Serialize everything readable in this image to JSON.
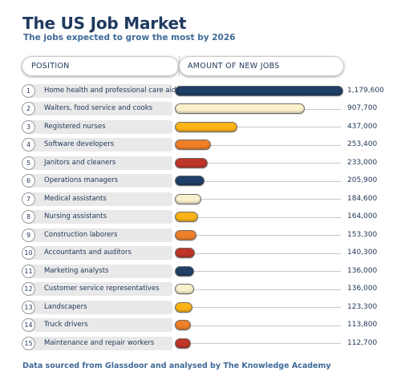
{
  "header": {
    "title": "The US Job Market",
    "subtitle": "The jobs expected to grow the most by 2026",
    "col_position": "POSITION",
    "col_amount": "AMOUNT OF NEW JOBS"
  },
  "colors": {
    "navy": "#1f3f66",
    "cream": "#fbf0cc",
    "gold": "#fbb316",
    "orange": "#ef7f28",
    "red": "#bf3628"
  },
  "chart_data": {
    "type": "bar",
    "orientation": "horizontal",
    "title": "The US Job Market",
    "subtitle": "The jobs expected to grow the most by 2026",
    "xlabel": "AMOUNT OF NEW JOBS",
    "ylabel": "POSITION",
    "categories": [
      "Home health and professional care aides",
      "Waiters, food service and cooks",
      "Registered nurses",
      "Software developers",
      "Janitors and cleaners",
      "Operations managers",
      "Medical assistants",
      "Nursing assistants",
      "Construction laborers",
      "Accountants and auditors",
      "Marketing analysts",
      "Customer service representatives",
      "Landscapers",
      "Truck drivers",
      "Maintenance and repair workers"
    ],
    "ranks": [
      "1",
      "2",
      "3",
      "4",
      "5",
      "6",
      "7",
      "8",
      "9",
      "10",
      "11",
      "12",
      "13",
      "14",
      "15"
    ],
    "values": [
      1179600,
      907700,
      437000,
      253400,
      233000,
      205900,
      184600,
      164000,
      153300,
      140300,
      136000,
      136000,
      123300,
      113800,
      112700
    ],
    "value_labels": [
      "1,179,600",
      "907,700",
      "437,000",
      "253,400",
      "233,000",
      "205,900",
      "184,600",
      "164,000",
      "153,300",
      "140,300",
      "136,000",
      "136,000",
      "123,300",
      "113,800",
      "112,700"
    ],
    "bar_colors": [
      "navy",
      "cream",
      "gold",
      "orange",
      "red",
      "navy",
      "cream",
      "gold",
      "orange",
      "red",
      "navy",
      "cream",
      "gold",
      "orange",
      "red"
    ],
    "xlim": [
      0,
      1179600
    ],
    "grid": false,
    "legend": "none"
  },
  "footer": "Data sourced from Glassdoor and analysed by The Knowledge Academy"
}
